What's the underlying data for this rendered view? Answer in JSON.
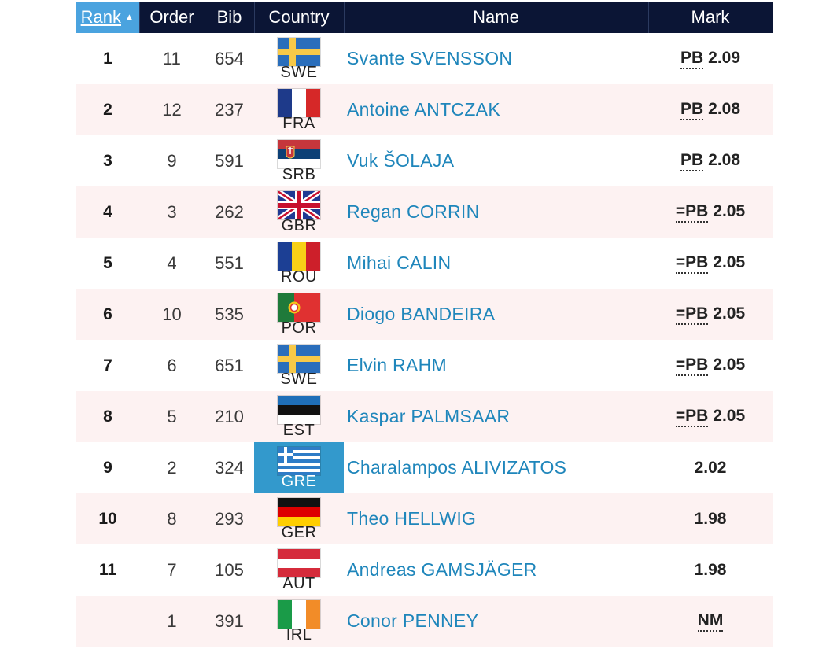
{
  "header": {
    "rank": "Rank",
    "sort_indicator": "▲",
    "order": "Order",
    "bib": "Bib",
    "country": "Country",
    "name": "Name",
    "mark": "Mark"
  },
  "rows": [
    {
      "rank": "1",
      "order": "11",
      "bib": "654",
      "country": "SWE",
      "flag": "sweden-flag",
      "name": "Svante SVENSSON",
      "record": "PB",
      "mark": "2.09"
    },
    {
      "rank": "2",
      "order": "12",
      "bib": "237",
      "country": "FRA",
      "flag": "france-flag",
      "name": "Antoine ANTCZAK",
      "record": "PB",
      "mark": "2.08"
    },
    {
      "rank": "3",
      "order": "9",
      "bib": "591",
      "country": "SRB",
      "flag": "serbia-flag",
      "name": "Vuk ŠOLAJA",
      "record": "PB",
      "mark": "2.08"
    },
    {
      "rank": "4",
      "order": "3",
      "bib": "262",
      "country": "GBR",
      "flag": "great-britain-flag",
      "name": "Regan CORRIN",
      "record": "=PB",
      "mark": "2.05"
    },
    {
      "rank": "5",
      "order": "4",
      "bib": "551",
      "country": "ROU",
      "flag": "romania-flag",
      "name": "Mihai CALIN",
      "record": "=PB",
      "mark": "2.05"
    },
    {
      "rank": "6",
      "order": "10",
      "bib": "535",
      "country": "POR",
      "flag": "portugal-flag",
      "name": "Diogo BANDEIRA",
      "record": "=PB",
      "mark": "2.05"
    },
    {
      "rank": "7",
      "order": "6",
      "bib": "651",
      "country": "SWE",
      "flag": "sweden-flag",
      "name": "Elvin RAHM",
      "record": "=PB",
      "mark": "2.05"
    },
    {
      "rank": "8",
      "order": "5",
      "bib": "210",
      "country": "EST",
      "flag": "estonia-flag",
      "name": "Kaspar PALMSAAR",
      "record": "=PB",
      "mark": "2.05"
    },
    {
      "rank": "9",
      "order": "2",
      "bib": "324",
      "country": "GRE",
      "flag": "greece-flag",
      "name": "Charalampos ALIVIZATOS",
      "record": "",
      "mark": "2.02"
    },
    {
      "rank": "10",
      "order": "8",
      "bib": "293",
      "country": "GER",
      "flag": "germany-flag",
      "name": "Theo HELLWIG",
      "record": "",
      "mark": "1.98"
    },
    {
      "rank": "11",
      "order": "7",
      "bib": "105",
      "country": "AUT",
      "flag": "austria-flag",
      "name": "Andreas GAMSJÄGER",
      "record": "",
      "mark": "1.98"
    },
    {
      "rank": "",
      "order": "1",
      "bib": "391",
      "country": "IRL",
      "flag": "ireland-flag",
      "name": "Conor PENNEY",
      "record": "",
      "mark": "NM"
    }
  ]
}
